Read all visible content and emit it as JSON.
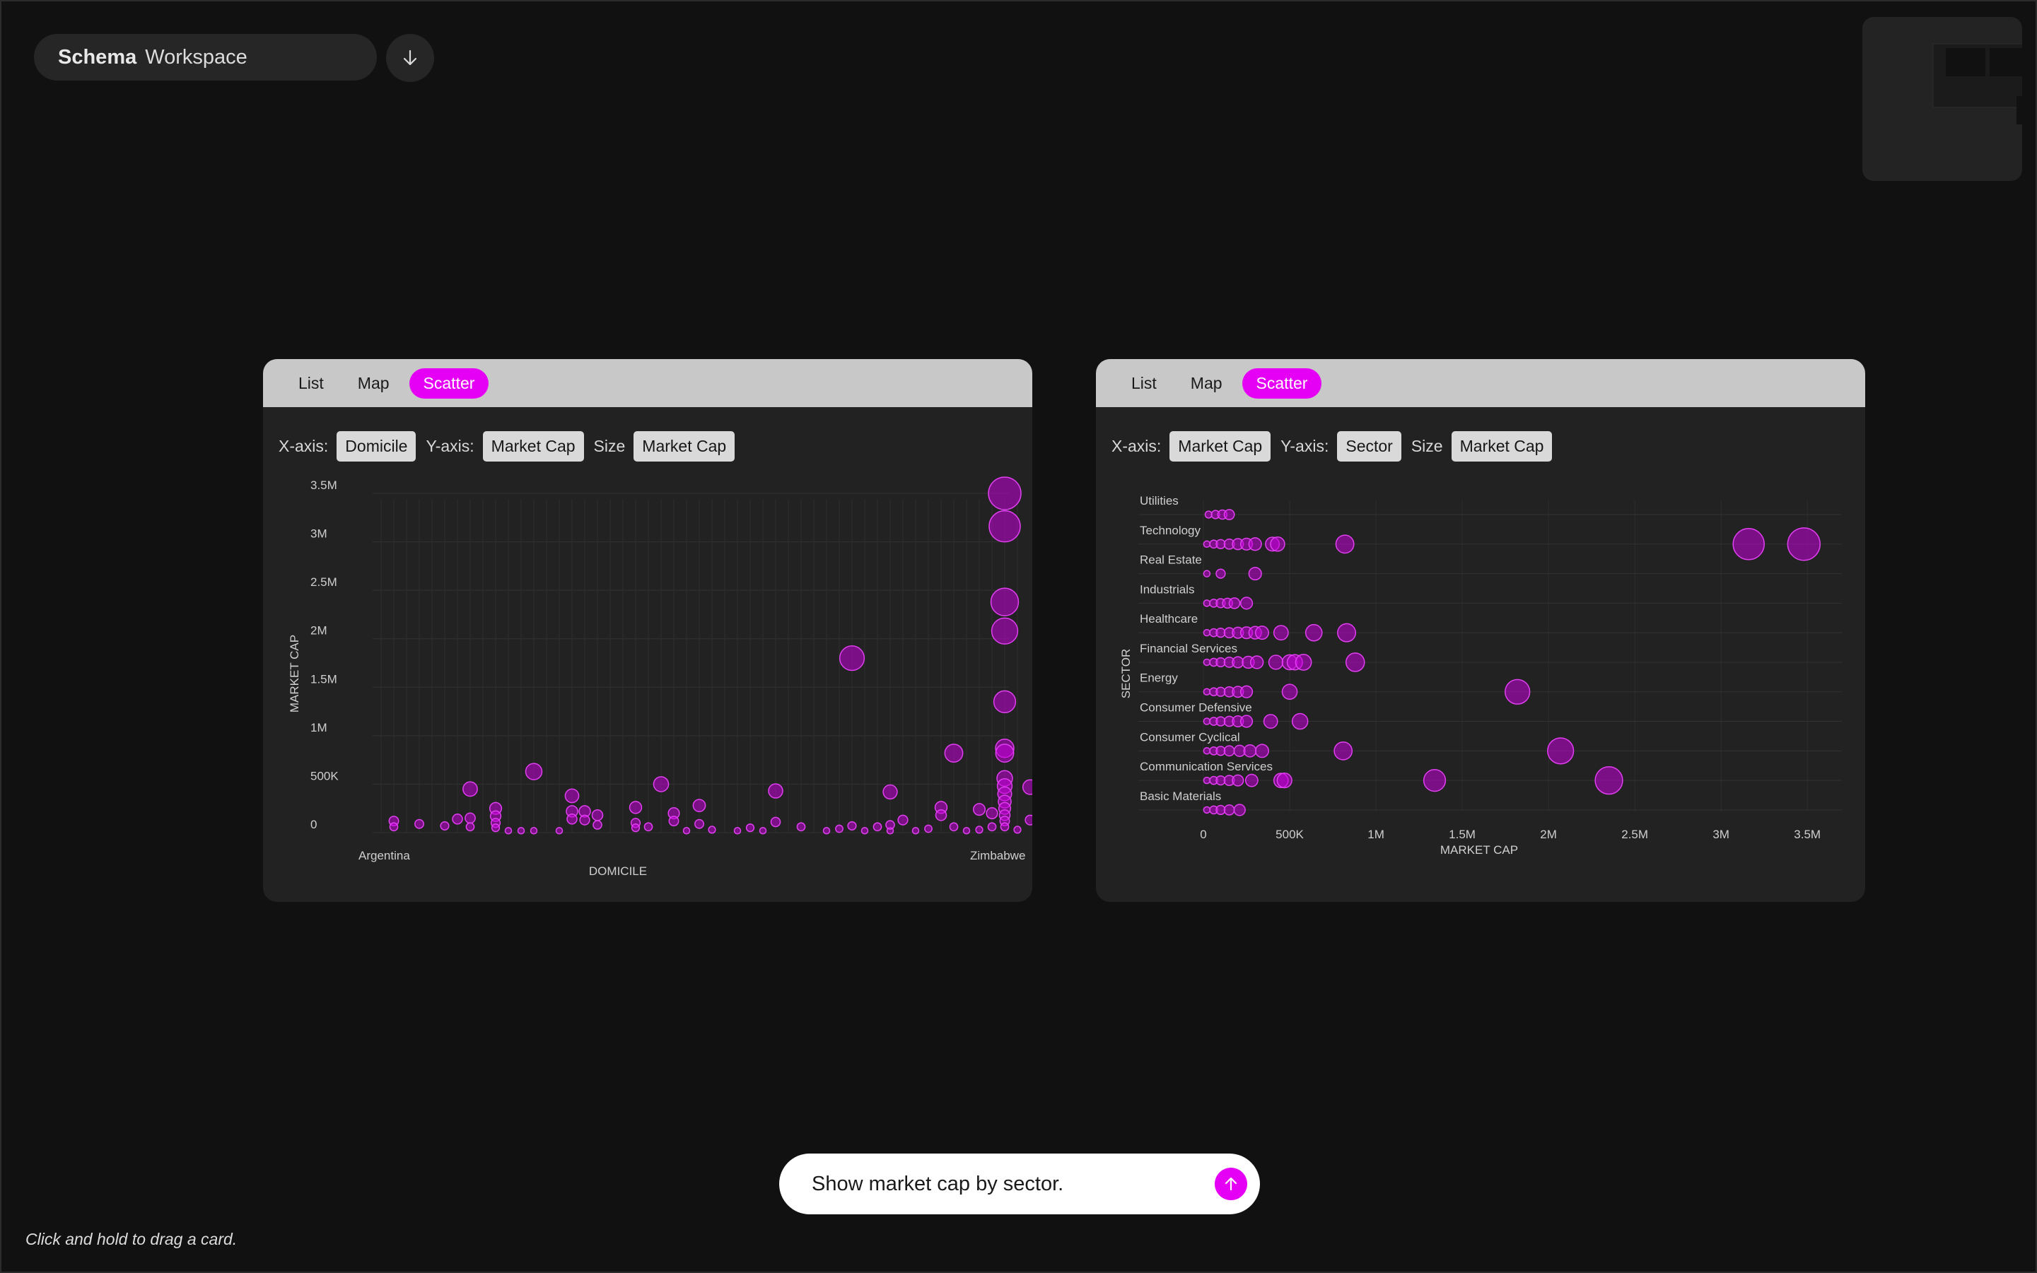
{
  "header": {
    "brand": "Schema",
    "workspace": "Workspace",
    "download_icon": "arrow-down-icon"
  },
  "cards": [
    {
      "tabs": [
        {
          "label": "List"
        },
        {
          "label": "Map"
        },
        {
          "label": "Scatter"
        }
      ],
      "active_tab": "Scatter",
      "controls": {
        "x_label": "X-axis:",
        "x_value": "Domicile",
        "y_label": "Y-axis:",
        "y_value": "Market Cap",
        "size_label": "Size",
        "size_value": "Market Cap"
      }
    },
    {
      "tabs": [
        {
          "label": "List"
        },
        {
          "label": "Map"
        },
        {
          "label": "Scatter"
        }
      ],
      "active_tab": "Scatter",
      "controls": {
        "x_label": "X-axis:",
        "x_value": "Market Cap",
        "y_label": "Y-axis:",
        "y_value": "Sector",
        "size_label": "Size",
        "size_value": "Market Cap"
      }
    }
  ],
  "chart_data": [
    {
      "type": "scatter",
      "xlabel": "DOMICILE",
      "ylabel": "MARKET CAP",
      "x_tick_labels": [
        "Argentina",
        "",
        "",
        "",
        "",
        "",
        "",
        "",
        "",
        "",
        "",
        "",
        "",
        "",
        "",
        "",
        "",
        "",
        "",
        "",
        "",
        "",
        "",
        "",
        "",
        "",
        "",
        "",
        "",
        "",
        "",
        "",
        "",
        "",
        "",
        "",
        "",
        "",
        "",
        "",
        "",
        "",
        "",
        "",
        "",
        "",
        "",
        "Zimbabwe"
      ],
      "y_ticks": [
        {
          "value": 0,
          "label": "0"
        },
        {
          "value": 500000,
          "label": "500K"
        },
        {
          "value": 1000000,
          "label": "1M"
        },
        {
          "value": 1500000,
          "label": "1.5M"
        },
        {
          "value": 2000000,
          "label": "2M"
        },
        {
          "value": 2500000,
          "label": "2.5M"
        },
        {
          "value": 3000000,
          "label": "3M"
        },
        {
          "value": 3500000,
          "label": "3.5M"
        }
      ],
      "ylim": [
        0,
        3500000
      ],
      "grid": true,
      "color": "#c400d8",
      "points": [
        {
          "x": 1,
          "y": 120000
        },
        {
          "x": 1,
          "y": 60000
        },
        {
          "x": 3,
          "y": 90000
        },
        {
          "x": 5,
          "y": 70000
        },
        {
          "x": 6,
          "y": 140000
        },
        {
          "x": 7,
          "y": 150000
        },
        {
          "x": 7,
          "y": 60000
        },
        {
          "x": 7,
          "y": 450000
        },
        {
          "x": 9,
          "y": 250000
        },
        {
          "x": 9,
          "y": 170000
        },
        {
          "x": 9,
          "y": 100000
        },
        {
          "x": 9,
          "y": 50000
        },
        {
          "x": 10,
          "y": 20000
        },
        {
          "x": 11,
          "y": 20000
        },
        {
          "x": 12,
          "y": 630000
        },
        {
          "x": 12,
          "y": 20000
        },
        {
          "x": 14,
          "y": 20000
        },
        {
          "x": 15,
          "y": 380000
        },
        {
          "x": 15,
          "y": 220000
        },
        {
          "x": 15,
          "y": 140000
        },
        {
          "x": 16,
          "y": 220000
        },
        {
          "x": 16,
          "y": 130000
        },
        {
          "x": 17,
          "y": 180000
        },
        {
          "x": 17,
          "y": 80000
        },
        {
          "x": 20,
          "y": 260000
        },
        {
          "x": 20,
          "y": 100000
        },
        {
          "x": 20,
          "y": 50000
        },
        {
          "x": 21,
          "y": 60000
        },
        {
          "x": 22,
          "y": 500000
        },
        {
          "x": 23,
          "y": 200000
        },
        {
          "x": 23,
          "y": 120000
        },
        {
          "x": 24,
          "y": 20000
        },
        {
          "x": 25,
          "y": 280000
        },
        {
          "x": 25,
          "y": 90000
        },
        {
          "x": 26,
          "y": 30000
        },
        {
          "x": 28,
          "y": 20000
        },
        {
          "x": 29,
          "y": 50000
        },
        {
          "x": 30,
          "y": 20000
        },
        {
          "x": 31,
          "y": 430000
        },
        {
          "x": 31,
          "y": 110000
        },
        {
          "x": 33,
          "y": 60000
        },
        {
          "x": 35,
          "y": 20000
        },
        {
          "x": 36,
          "y": 40000
        },
        {
          "x": 37,
          "y": 1800000
        },
        {
          "x": 37,
          "y": 70000
        },
        {
          "x": 38,
          "y": 20000
        },
        {
          "x": 39,
          "y": 60000
        },
        {
          "x": 40,
          "y": 20000
        },
        {
          "x": 40,
          "y": 420000
        },
        {
          "x": 40,
          "y": 80000
        },
        {
          "x": 41,
          "y": 130000
        },
        {
          "x": 42,
          "y": 20000
        },
        {
          "x": 43,
          "y": 40000
        },
        {
          "x": 44,
          "y": 260000
        },
        {
          "x": 44,
          "y": 180000
        },
        {
          "x": 45,
          "y": 60000
        },
        {
          "x": 45,
          "y": 820000
        },
        {
          "x": 46,
          "y": 20000
        },
        {
          "x": 47,
          "y": 30000
        },
        {
          "x": 47,
          "y": 240000
        },
        {
          "x": 48,
          "y": 60000
        },
        {
          "x": 48,
          "y": 200000
        },
        {
          "x": 49,
          "y": 3500000
        },
        {
          "x": 49,
          "y": 3160000
        },
        {
          "x": 49,
          "y": 2380000
        },
        {
          "x": 49,
          "y": 2080000
        },
        {
          "x": 49,
          "y": 1350000
        },
        {
          "x": 49,
          "y": 870000
        },
        {
          "x": 49,
          "y": 820000
        },
        {
          "x": 49,
          "y": 560000
        },
        {
          "x": 49,
          "y": 480000
        },
        {
          "x": 49,
          "y": 400000
        },
        {
          "x": 49,
          "y": 320000
        },
        {
          "x": 49,
          "y": 250000
        },
        {
          "x": 49,
          "y": 180000
        },
        {
          "x": 49,
          "y": 120000
        },
        {
          "x": 49,
          "y": 60000
        },
        {
          "x": 50,
          "y": 30000
        },
        {
          "x": 51,
          "y": 470000
        },
        {
          "x": 51,
          "y": 130000
        }
      ]
    },
    {
      "type": "scatter",
      "xlabel": "MARKET CAP",
      "ylabel": "SECTOR",
      "categories": [
        "Utilities",
        "Technology",
        "Real Estate",
        "Industrials",
        "Healthcare",
        "Financial Services",
        "Energy",
        "Consumer Defensive",
        "Consumer Cyclical",
        "Communication Services",
        "Basic Materials"
      ],
      "x_ticks": [
        {
          "value": 0,
          "label": "0"
        },
        {
          "value": 500000,
          "label": "500K"
        },
        {
          "value": 1000000,
          "label": "1M"
        },
        {
          "value": 1500000,
          "label": "1.5M"
        },
        {
          "value": 2000000,
          "label": "2M"
        },
        {
          "value": 2500000,
          "label": "2.5M"
        },
        {
          "value": 3000000,
          "label": "3M"
        },
        {
          "value": 3500000,
          "label": "3.5M"
        }
      ],
      "xlim": [
        0,
        3700000
      ],
      "grid": true,
      "color": "#c400d8",
      "points": [
        {
          "c": "Utilities",
          "x": 30000
        },
        {
          "c": "Utilities",
          "x": 70000
        },
        {
          "c": "Utilities",
          "x": 110000
        },
        {
          "c": "Utilities",
          "x": 150000
        },
        {
          "c": "Technology",
          "x": 20000
        },
        {
          "c": "Technology",
          "x": 60000
        },
        {
          "c": "Technology",
          "x": 100000
        },
        {
          "c": "Technology",
          "x": 150000
        },
        {
          "c": "Technology",
          "x": 200000
        },
        {
          "c": "Technology",
          "x": 250000
        },
        {
          "c": "Technology",
          "x": 300000
        },
        {
          "c": "Technology",
          "x": 400000
        },
        {
          "c": "Technology",
          "x": 430000
        },
        {
          "c": "Technology",
          "x": 820000
        },
        {
          "c": "Technology",
          "x": 3160000
        },
        {
          "c": "Technology",
          "x": 3480000
        },
        {
          "c": "Real Estate",
          "x": 20000
        },
        {
          "c": "Real Estate",
          "x": 100000
        },
        {
          "c": "Real Estate",
          "x": 300000
        },
        {
          "c": "Industrials",
          "x": 20000
        },
        {
          "c": "Industrials",
          "x": 60000
        },
        {
          "c": "Industrials",
          "x": 100000
        },
        {
          "c": "Industrials",
          "x": 140000
        },
        {
          "c": "Industrials",
          "x": 180000
        },
        {
          "c": "Industrials",
          "x": 250000
        },
        {
          "c": "Healthcare",
          "x": 20000
        },
        {
          "c": "Healthcare",
          "x": 60000
        },
        {
          "c": "Healthcare",
          "x": 100000
        },
        {
          "c": "Healthcare",
          "x": 150000
        },
        {
          "c": "Healthcare",
          "x": 200000
        },
        {
          "c": "Healthcare",
          "x": 250000
        },
        {
          "c": "Healthcare",
          "x": 300000
        },
        {
          "c": "Healthcare",
          "x": 340000
        },
        {
          "c": "Healthcare",
          "x": 450000
        },
        {
          "c": "Healthcare",
          "x": 640000
        },
        {
          "c": "Healthcare",
          "x": 830000
        },
        {
          "c": "Financial Services",
          "x": 20000
        },
        {
          "c": "Financial Services",
          "x": 60000
        },
        {
          "c": "Financial Services",
          "x": 100000
        },
        {
          "c": "Financial Services",
          "x": 150000
        },
        {
          "c": "Financial Services",
          "x": 200000
        },
        {
          "c": "Financial Services",
          "x": 260000
        },
        {
          "c": "Financial Services",
          "x": 310000
        },
        {
          "c": "Financial Services",
          "x": 420000
        },
        {
          "c": "Financial Services",
          "x": 500000
        },
        {
          "c": "Financial Services",
          "x": 530000
        },
        {
          "c": "Financial Services",
          "x": 580000
        },
        {
          "c": "Financial Services",
          "x": 880000
        },
        {
          "c": "Energy",
          "x": 20000
        },
        {
          "c": "Energy",
          "x": 60000
        },
        {
          "c": "Energy",
          "x": 100000
        },
        {
          "c": "Energy",
          "x": 150000
        },
        {
          "c": "Energy",
          "x": 200000
        },
        {
          "c": "Energy",
          "x": 250000
        },
        {
          "c": "Energy",
          "x": 500000
        },
        {
          "c": "Energy",
          "x": 1820000
        },
        {
          "c": "Consumer Defensive",
          "x": 20000
        },
        {
          "c": "Consumer Defensive",
          "x": 60000
        },
        {
          "c": "Consumer Defensive",
          "x": 100000
        },
        {
          "c": "Consumer Defensive",
          "x": 150000
        },
        {
          "c": "Consumer Defensive",
          "x": 200000
        },
        {
          "c": "Consumer Defensive",
          "x": 250000
        },
        {
          "c": "Consumer Defensive",
          "x": 390000
        },
        {
          "c": "Consumer Defensive",
          "x": 560000
        },
        {
          "c": "Consumer Cyclical",
          "x": 20000
        },
        {
          "c": "Consumer Cyclical",
          "x": 60000
        },
        {
          "c": "Consumer Cyclical",
          "x": 100000
        },
        {
          "c": "Consumer Cyclical",
          "x": 150000
        },
        {
          "c": "Consumer Cyclical",
          "x": 210000
        },
        {
          "c": "Consumer Cyclical",
          "x": 270000
        },
        {
          "c": "Consumer Cyclical",
          "x": 340000
        },
        {
          "c": "Consumer Cyclical",
          "x": 810000
        },
        {
          "c": "Consumer Cyclical",
          "x": 2070000
        },
        {
          "c": "Communication Services",
          "x": 20000
        },
        {
          "c": "Communication Services",
          "x": 60000
        },
        {
          "c": "Communication Services",
          "x": 100000
        },
        {
          "c": "Communication Services",
          "x": 150000
        },
        {
          "c": "Communication Services",
          "x": 200000
        },
        {
          "c": "Communication Services",
          "x": 280000
        },
        {
          "c": "Communication Services",
          "x": 450000
        },
        {
          "c": "Communication Services",
          "x": 470000
        },
        {
          "c": "Communication Services",
          "x": 1340000
        },
        {
          "c": "Communication Services",
          "x": 2350000
        },
        {
          "c": "Basic Materials",
          "x": 20000
        },
        {
          "c": "Basic Materials",
          "x": 60000
        },
        {
          "c": "Basic Materials",
          "x": 100000
        },
        {
          "c": "Basic Materials",
          "x": 150000
        },
        {
          "c": "Basic Materials",
          "x": 210000
        }
      ]
    }
  ],
  "prompt": {
    "text": "Show market cap by sector.",
    "send_icon": "arrow-up-icon"
  },
  "footer": {
    "hint": "Click and hold to drag a card."
  }
}
